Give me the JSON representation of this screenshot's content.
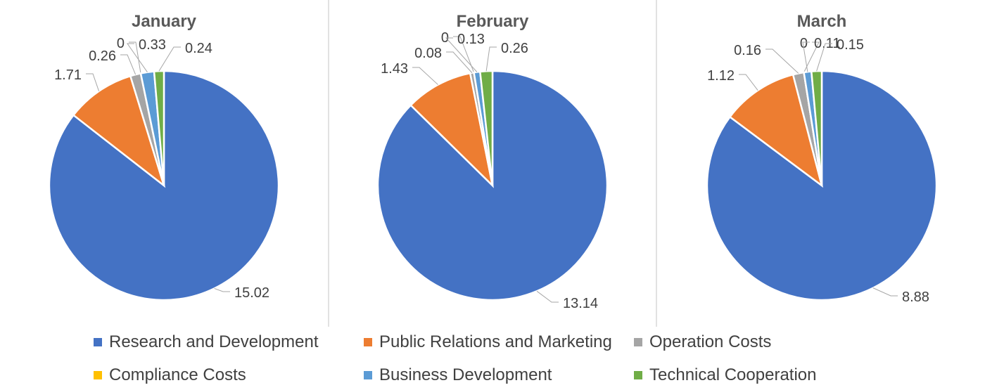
{
  "chart_data": [
    {
      "type": "pie",
      "title": "January",
      "categories": [
        "Research and Development",
        "Public Relations and Marketing",
        "Operation Costs",
        "Compliance Costs",
        "Business Development",
        "Technical Cooperation"
      ],
      "values": [
        15.02,
        1.71,
        0.26,
        0,
        0.33,
        0.24
      ],
      "data_labels": [
        "15.02",
        "1.71",
        "0.26",
        "0",
        "0.33",
        "0.24"
      ]
    },
    {
      "type": "pie",
      "title": "February",
      "categories": [
        "Research and Development",
        "Public Relations and Marketing",
        "Operation Costs",
        "Compliance Costs",
        "Business Development",
        "Technical Cooperation"
      ],
      "values": [
        13.14,
        1.43,
        0.08,
        0,
        0.13,
        0.26
      ],
      "data_labels": [
        "13.14",
        "1.43",
        "0.08",
        "0",
        "0.13",
        "0.26"
      ]
    },
    {
      "type": "pie",
      "title": "March",
      "categories": [
        "Research and Development",
        "Public Relations and Marketing",
        "Operation Costs",
        "Compliance Costs",
        "Business Development",
        "Technical Cooperation"
      ],
      "values": [
        8.88,
        1.12,
        0.16,
        0,
        0.11,
        0.15
      ],
      "data_labels": [
        "8.88",
        "1.12",
        "0.16",
        "0",
        "0.11",
        "0.15"
      ]
    }
  ],
  "legend": {
    "placement": "bottom",
    "items": [
      {
        "label": "Research and Development",
        "color": "#4472C4"
      },
      {
        "label": "Public Relations and Marketing",
        "color": "#ED7D31"
      },
      {
        "label": "Operation Costs",
        "color": "#A5A5A5"
      },
      {
        "label": "Compliance Costs",
        "color": "#FFC000"
      },
      {
        "label": "Business Development",
        "color": "#5B9BD5"
      },
      {
        "label": "Technical Cooperation",
        "color": "#70AD47"
      }
    ]
  }
}
